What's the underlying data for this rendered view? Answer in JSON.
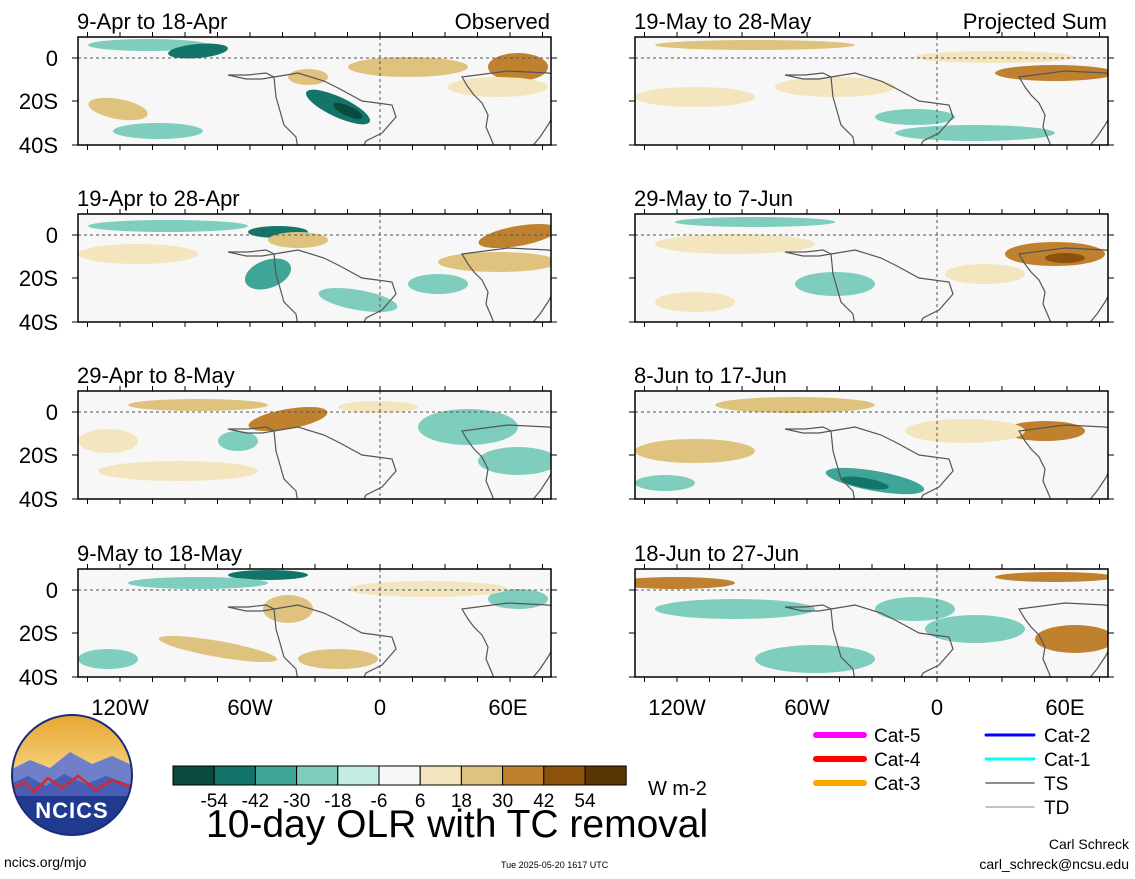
{
  "left_column_label": "Observed",
  "right_column_label": "Projected Sum",
  "observed_panels": [
    {
      "period": "9-Apr to 18-Apr"
    },
    {
      "period": "19-Apr to 28-Apr"
    },
    {
      "period": "29-Apr to 8-May"
    },
    {
      "period": "9-May to 18-May"
    }
  ],
  "projected_panels": [
    {
      "period": "19-May to 28-May"
    },
    {
      "period": "29-May to 7-Jun"
    },
    {
      "period": "8-Jun to 17-Jun"
    },
    {
      "period": "18-Jun to 27-Jun"
    }
  ],
  "lat_ticks": [
    "0",
    "20S",
    "40S"
  ],
  "lon_ticks": [
    "120W",
    "60W",
    "0",
    "60E"
  ],
  "colorbar": {
    "colors": [
      "#0b4a3c",
      "#13756a",
      "#3fa596",
      "#7ecdbd",
      "#c4ece2",
      "#f7f7f7",
      "#f3e5bd",
      "#dfc27d",
      "#bf812d",
      "#8c510a",
      "#5b3605"
    ],
    "tick_labels": [
      "-54",
      "-42",
      "-30",
      "-18",
      "-6",
      "6",
      "18",
      "30",
      "42",
      "54"
    ],
    "units": "W m-2"
  },
  "legend": {
    "items": [
      {
        "label": "Cat-5",
        "color": "#ff00ff",
        "weight": "thick"
      },
      {
        "label": "Cat-4",
        "color": "#ff0000",
        "weight": "thick"
      },
      {
        "label": "Cat-3",
        "color": "#ffa500",
        "weight": "thick"
      },
      {
        "label": "Cat-2",
        "color": "#0000ff",
        "weight": "medium"
      },
      {
        "label": "Cat-1",
        "color": "#00ffff",
        "weight": "medium"
      },
      {
        "label": "TS",
        "color": "#666666",
        "weight": "thin"
      },
      {
        "label": "TD",
        "color": "#b0b0b0",
        "weight": "thin"
      }
    ]
  },
  "logo_text": "NCICS",
  "title": "10-day OLR with TC removal",
  "footer": {
    "site": "ncics.org/mjo",
    "timestamp": "Tue 2025-05-20 1617 UTC",
    "author": "Carl Schreck",
    "email": "carl_schreck@ncsu.edu"
  }
}
